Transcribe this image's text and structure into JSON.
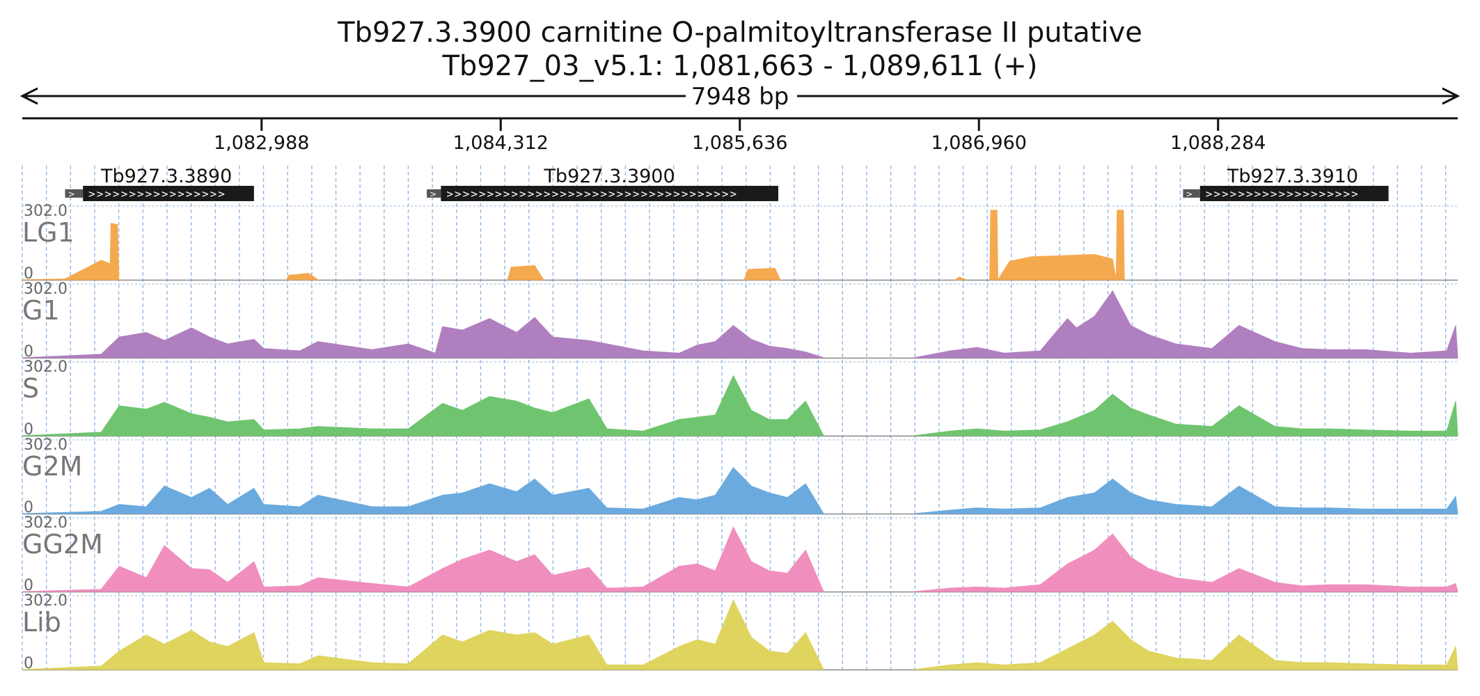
{
  "title": "Tb927.3.3900  carnitine O-palmitoyltransferase II  putative",
  "subtitle": "Tb927_03_v5.1: 1,081,663 - 1,089,611 (+)",
  "span_label": "7948 bp",
  "chart_data": {
    "type": "area",
    "region": {
      "chromosome": "Tb927_03_v5.1",
      "start": 1081663,
      "end": 1089611,
      "strand": "+",
      "length_bp": 7948
    },
    "ticks": [
      {
        "pos": 1082988,
        "label": "1,082,988"
      },
      {
        "pos": 1084312,
        "label": "1,084,312"
      },
      {
        "pos": 1085636,
        "label": "1,085,636"
      },
      {
        "pos": 1086960,
        "label": "1,086,960"
      },
      {
        "pos": 1088284,
        "label": "1,088,284"
      }
    ],
    "genes": [
      {
        "id": "Tb927.3.3890",
        "utr_start": 1081900,
        "start": 1081999,
        "end": 1082946,
        "strand": "+"
      },
      {
        "id": "Tb927.3.3900",
        "utr_start": 1083903,
        "start": 1083981,
        "end": 1085849,
        "strand": "+"
      },
      {
        "id": "Tb927.3.3910",
        "utr_start": 1088090,
        "start": 1088184,
        "end": 1089228,
        "strand": "+"
      }
    ],
    "ymax": 302.0,
    "ymax_label": "302.0",
    "ymin_label": "0",
    "grid_x": true,
    "tracks": [
      {
        "name": "LG1",
        "color": "#f5a94f",
        "segments": [
          {
            "x": [
              1081663,
              1081900,
              1082100,
              1082150,
              1082154,
              1082190,
              1082198,
              1082210
            ],
            "y": [
              0,
              4,
              85,
              70,
              245,
              240,
              0,
              0
            ]
          },
          {
            "x": [
              1083125,
              1083140,
              1083250,
              1083300
            ],
            "y": [
              0,
              20,
              28,
              0
            ]
          },
          {
            "x": [
              1084350,
              1084370,
              1084500,
              1084550
            ],
            "y": [
              0,
              55,
              62,
              0
            ]
          },
          {
            "x": [
              1085660,
              1085680,
              1085830,
              1085860
            ],
            "y": [
              0,
              45,
              50,
              0
            ]
          },
          {
            "x": [
              1086830,
              1086850,
              1086890
            ],
            "y": [
              0,
              12,
              0
            ]
          },
          {
            "x": [
              1087020,
              1087025,
              1087060,
              1087065,
              1087130,
              1087250,
              1087600,
              1087700,
              1087720,
              1087725,
              1087760,
              1087765
            ],
            "y": [
              0,
              302,
              302,
              0,
              80,
              100,
              110,
              90,
              0,
              302,
              302,
              0
            ]
          }
        ]
      },
      {
        "name": "G1",
        "color": "#b07fbf",
        "segments": [
          {
            "x": [
              1081663,
              1082100,
              1082200,
              1082350,
              1082450,
              1082600,
              1082700,
              1082800,
              1082946,
              1083000,
              1083200,
              1083300,
              1083600,
              1083800,
              1083950,
              1083990,
              1084100,
              1084250,
              1084400,
              1084500,
              1084600,
              1084800,
              1084900,
              1085100,
              1085300,
              1085400,
              1085500,
              1085600,
              1085700,
              1085800,
              1085900,
              1086000,
              1086100
            ],
            "y": [
              0,
              15,
              90,
              110,
              75,
              130,
              90,
              60,
              80,
              40,
              30,
              70,
              35,
              60,
              20,
              135,
              120,
              170,
              110,
              175,
              90,
              75,
              60,
              30,
              20,
              55,
              70,
              140,
              80,
              50,
              40,
              25,
              0
            ]
          },
          {
            "x": [
              1086600,
              1086800,
              1086950,
              1087100,
              1087300,
              1087450,
              1087500,
              1087600,
              1087700,
              1087800,
              1087900,
              1088050,
              1088250,
              1088400,
              1088600,
              1088750,
              1088900,
              1089100,
              1089350,
              1089550,
              1089600,
              1089611
            ],
            "y": [
              0,
              30,
              45,
              20,
              30,
              170,
              130,
              180,
              290,
              140,
              100,
              60,
              40,
              140,
              70,
              40,
              35,
              35,
              20,
              30,
              140,
              0
            ]
          }
        ]
      },
      {
        "name": "S",
        "color": "#6fc56f",
        "segments": [
          {
            "x": [
              1081663,
              1082100,
              1082200,
              1082350,
              1082450,
              1082600,
              1082700,
              1082800,
              1082946,
              1083000,
              1083200,
              1083300,
              1083600,
              1083800,
              1083990,
              1084100,
              1084250,
              1084400,
              1084500,
              1084600,
              1084800,
              1084900,
              1085100,
              1085300,
              1085400,
              1085500,
              1085600,
              1085700,
              1085800,
              1085900,
              1086000,
              1086100
            ],
            "y": [
              0,
              15,
              130,
              115,
              145,
              95,
              80,
              60,
              70,
              25,
              30,
              40,
              30,
              30,
              140,
              110,
              170,
              150,
              120,
              100,
              160,
              30,
              20,
              70,
              80,
              90,
              260,
              110,
              70,
              70,
              150,
              0
            ]
          },
          {
            "x": [
              1086600,
              1086800,
              1086950,
              1087100,
              1087300,
              1087450,
              1087600,
              1087700,
              1087800,
              1087900,
              1088050,
              1088250,
              1088400,
              1088600,
              1088750,
              1088900,
              1089100,
              1089350,
              1089550,
              1089600,
              1089611
            ],
            "y": [
              0,
              20,
              30,
              20,
              25,
              60,
              110,
              180,
              120,
              90,
              50,
              40,
              130,
              40,
              30,
              30,
              25,
              20,
              20,
              150,
              0
            ]
          }
        ]
      },
      {
        "name": "G2M",
        "color": "#6aaade",
        "segments": [
          {
            "x": [
              1081663,
              1082100,
              1082200,
              1082350,
              1082450,
              1082600,
              1082700,
              1082800,
              1082946,
              1083000,
              1083200,
              1083300,
              1083600,
              1083800,
              1083990,
              1084100,
              1084250,
              1084400,
              1084500,
              1084600,
              1084800,
              1084900,
              1085100,
              1085300,
              1085400,
              1085500,
              1085600,
              1085700,
              1085800,
              1085900,
              1086000,
              1086100
            ],
            "y": [
              0,
              10,
              40,
              30,
              120,
              70,
              110,
              40,
              110,
              40,
              30,
              80,
              30,
              30,
              80,
              90,
              130,
              95,
              150,
              80,
              110,
              25,
              20,
              70,
              60,
              80,
              200,
              120,
              90,
              70,
              130,
              0
            ]
          },
          {
            "x": [
              1086600,
              1086800,
              1086950,
              1087100,
              1087300,
              1087450,
              1087600,
              1087700,
              1087800,
              1087900,
              1088050,
              1088250,
              1088400,
              1088600,
              1088750,
              1088900,
              1089100,
              1089350,
              1089550,
              1089600,
              1089611
            ],
            "y": [
              0,
              15,
              25,
              20,
              25,
              70,
              90,
              150,
              90,
              60,
              40,
              30,
              120,
              30,
              25,
              25,
              20,
              20,
              20,
              75,
              0
            ]
          }
        ]
      },
      {
        "name": "GG2M",
        "color": "#f08ebd",
        "segments": [
          {
            "x": [
              1081663,
              1082100,
              1082200,
              1082350,
              1082450,
              1082600,
              1082700,
              1082800,
              1082946,
              1083000,
              1083200,
              1083300,
              1083600,
              1083800,
              1083990,
              1084100,
              1084250,
              1084400,
              1084500,
              1084600,
              1084800,
              1084900,
              1085100,
              1085300,
              1085400,
              1085500,
              1085600,
              1085700,
              1085800,
              1085900,
              1086000,
              1086100
            ],
            "y": [
              0,
              10,
              110,
              60,
              200,
              100,
              95,
              40,
              130,
              20,
              25,
              60,
              35,
              20,
              100,
              140,
              180,
              130,
              160,
              70,
              105,
              15,
              20,
              110,
              120,
              90,
              280,
              130,
              90,
              80,
              180,
              0
            ]
          },
          {
            "x": [
              1086600,
              1086800,
              1086950,
              1087100,
              1087300,
              1087450,
              1087600,
              1087700,
              1087800,
              1087900,
              1088050,
              1088250,
              1088400,
              1088600,
              1088750,
              1088900,
              1089100,
              1089350,
              1089550,
              1089600,
              1089611
            ],
            "y": [
              0,
              15,
              20,
              15,
              30,
              120,
              180,
              250,
              150,
              100,
              60,
              40,
              100,
              40,
              25,
              30,
              30,
              20,
              20,
              35,
              0
            ]
          }
        ]
      },
      {
        "name": "Lib",
        "color": "#dfd45e",
        "segments": [
          {
            "x": [
              1081663,
              1082100,
              1082200,
              1082350,
              1082450,
              1082600,
              1082700,
              1082800,
              1082946,
              1083000,
              1083200,
              1083300,
              1083600,
              1083800,
              1083990,
              1084100,
              1084250,
              1084400,
              1084500,
              1084600,
              1084800,
              1084900,
              1085100,
              1085300,
              1085400,
              1085500,
              1085600,
              1085700,
              1085800,
              1085900,
              1086000,
              1086100
            ],
            "y": [
              0,
              15,
              80,
              150,
              110,
              170,
              120,
              100,
              160,
              30,
              25,
              60,
              30,
              25,
              150,
              120,
              170,
              150,
              160,
              110,
              150,
              20,
              20,
              100,
              130,
              110,
              302,
              140,
              80,
              70,
              160,
              0
            ]
          },
          {
            "x": [
              1086600,
              1086800,
              1086950,
              1087100,
              1087300,
              1087450,
              1087600,
              1087700,
              1087800,
              1087900,
              1088050,
              1088250,
              1088400,
              1088600,
              1088750,
              1088900,
              1089100,
              1089350,
              1089550,
              1089600,
              1089611
            ],
            "y": [
              0,
              20,
              30,
              20,
              30,
              90,
              150,
              210,
              130,
              80,
              50,
              40,
              150,
              40,
              30,
              30,
              25,
              20,
              20,
              100,
              0
            ]
          }
        ]
      }
    ]
  }
}
